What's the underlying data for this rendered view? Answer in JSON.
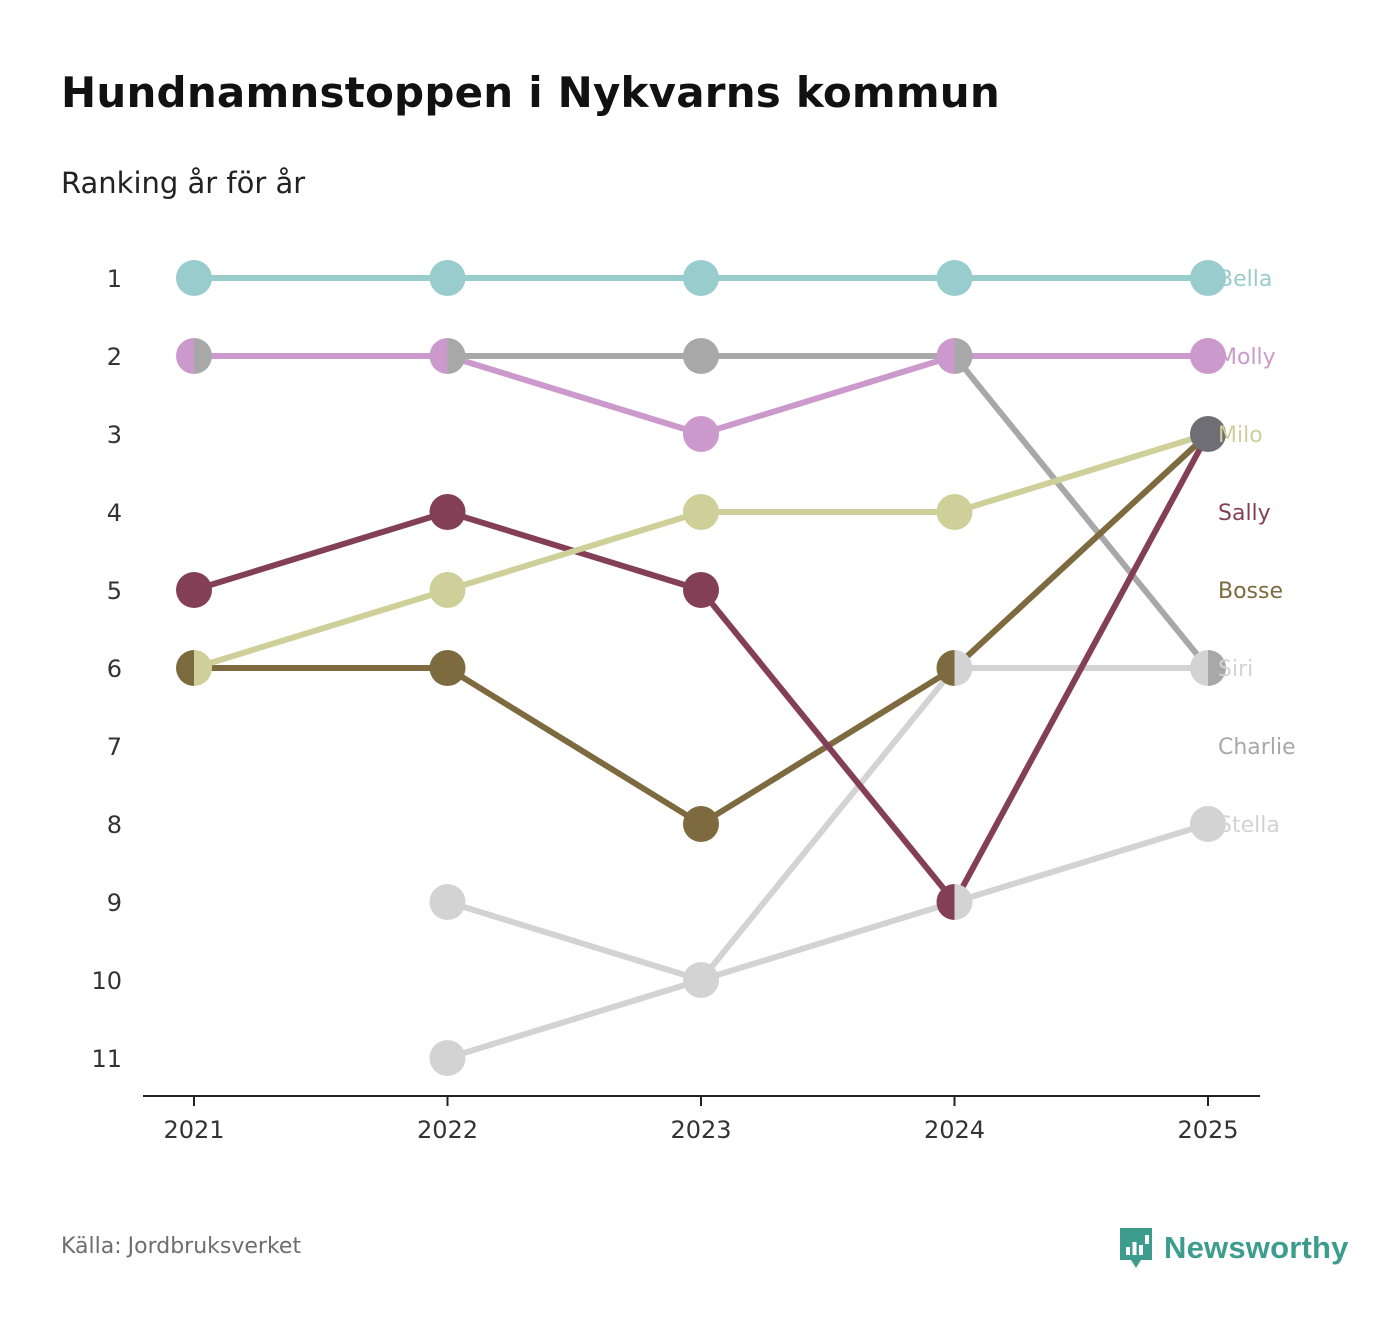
{
  "title": "Hundnamnstoppen i Nykvarns kommun",
  "subtitle": "Ranking år för år",
  "source": {
    "label": "Källa:",
    "name": "Jordbruksverket"
  },
  "brand": {
    "name": "Newsworthy",
    "icon": "newsworthy-logo-icon",
    "color": "#3c9d8f"
  },
  "chart_data": {
    "type": "line",
    "subtype": "bump",
    "title": "Hundnamnstoppen i Nykvarns kommun",
    "subtitle": "Ranking år för år",
    "xlabel": "",
    "ylabel": "",
    "x": [
      "2021",
      "2022",
      "2023",
      "2024",
      "2025"
    ],
    "y_ticks": [
      "1",
      "2",
      "3",
      "4",
      "5",
      "6",
      "7",
      "8",
      "9",
      "10",
      "11"
    ],
    "ylim": [
      1,
      11
    ],
    "y_inverted": true,
    "grid": false,
    "legend": "right-side direct labels",
    "series": [
      {
        "name": "Stella",
        "color": "#d3d3d3",
        "values": [
          null,
          11,
          10,
          9,
          8
        ]
      },
      {
        "name": "Charlie",
        "color": "#d3d3d3",
        "values": [
          null,
          9,
          10,
          6,
          6
        ]
      },
      {
        "name": "Siri",
        "color": "#a8a8a8",
        "values": [
          2,
          2,
          2,
          2,
          6
        ]
      },
      {
        "name": "Bosse",
        "color": "#7d6a3e",
        "values": [
          6,
          6,
          8,
          6,
          3
        ]
      },
      {
        "name": "Sally",
        "color": "#833f55",
        "values": [
          5,
          4,
          5,
          9,
          3
        ]
      },
      {
        "name": "Milo",
        "color": "#cfcf9a",
        "values": [
          6,
          5,
          4,
          4,
          3
        ]
      },
      {
        "name": "Molly",
        "color": "#cc99cc",
        "values": [
          2,
          2,
          3,
          2,
          2
        ]
      },
      {
        "name": "Bella",
        "color": "#99cccc",
        "values": [
          1,
          1,
          1,
          1,
          1
        ]
      }
    ],
    "end_labels": [
      {
        "name": "Bella",
        "rank": 1,
        "color": "#99cccc"
      },
      {
        "name": "Molly",
        "rank": 2,
        "color": "#cc99cc"
      },
      {
        "name": "Milo",
        "rank": 3,
        "color": "#cfcf9a"
      },
      {
        "name": "Sally",
        "rank": 4,
        "color": "#833f55"
      },
      {
        "name": "Bosse",
        "rank": 5,
        "color": "#7d6a3e"
      },
      {
        "name": "Siri",
        "rank": 6,
        "color": "#d3d3d3"
      },
      {
        "name": "Charlie",
        "rank": 7,
        "color": "#a8a8a8"
      },
      {
        "name": "Stella",
        "rank": 8,
        "color": "#d3d3d3"
      }
    ],
    "tied_marker_color": "#6e6e74"
  }
}
